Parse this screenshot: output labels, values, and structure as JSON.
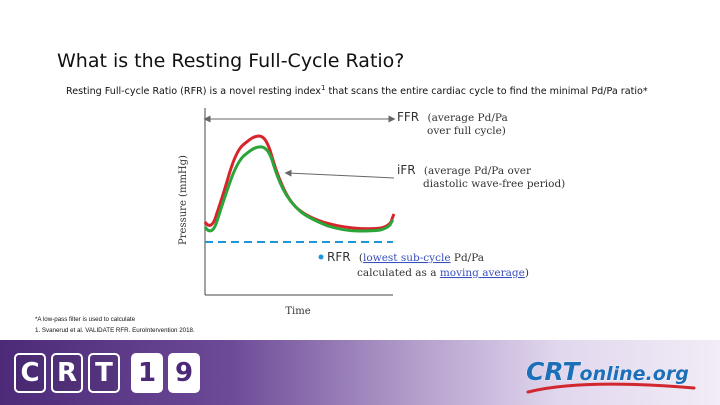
{
  "slide": {
    "title": "What is the Resting Full-Cycle Ratio?",
    "subtitle_part1": "Resting Full-cycle Ratio (RFR) is a novel resting index",
    "subtitle_ref": "1",
    "subtitle_part2": " that scans the entire cardiac cycle to find the minimal Pd/Pa ratio*"
  },
  "diagram": {
    "y_axis_label": "Pressure (mmHg)",
    "x_axis_label": "Time",
    "ffr": {
      "name": "FFR",
      "desc_line1": "(average Pd/Pa",
      "desc_line2": "over full cycle)"
    },
    "ifr": {
      "name": "iFR",
      "desc_line1": "(average Pd/Pa over",
      "desc_line2": "diastolic wave-free period)"
    },
    "rfr": {
      "name": "RFR",
      "desc_line1_a": "(",
      "desc_line1_link": "lowest sub-cycle",
      "desc_line1_b": " Pd/Pa",
      "desc_line2_a": "calculated as a ",
      "desc_line2_link": "moving average",
      "desc_line2_b": ")"
    },
    "colors": {
      "pa_curve": "#d9232b",
      "pd_curve": "#2aa53a",
      "rfr_line": "#1e96d8",
      "arrow": "#666666",
      "link": "#3a4fbf"
    }
  },
  "footnotes": {
    "line1": "*A low-pass filter is used to calculate",
    "line2": "1. Svanerud et al. VALIDATE RFR. EuroIntervention 2018."
  },
  "footer": {
    "crt_letters": [
      "C",
      "R",
      "T"
    ],
    "crt_year": [
      "1",
      "9"
    ],
    "site_main": "CRT",
    "site_suffix": "online.org",
    "colors": {
      "crt_purple": "#4d2a78",
      "site_blue": "#1d6fb8",
      "site_red": "#d0282e"
    }
  }
}
